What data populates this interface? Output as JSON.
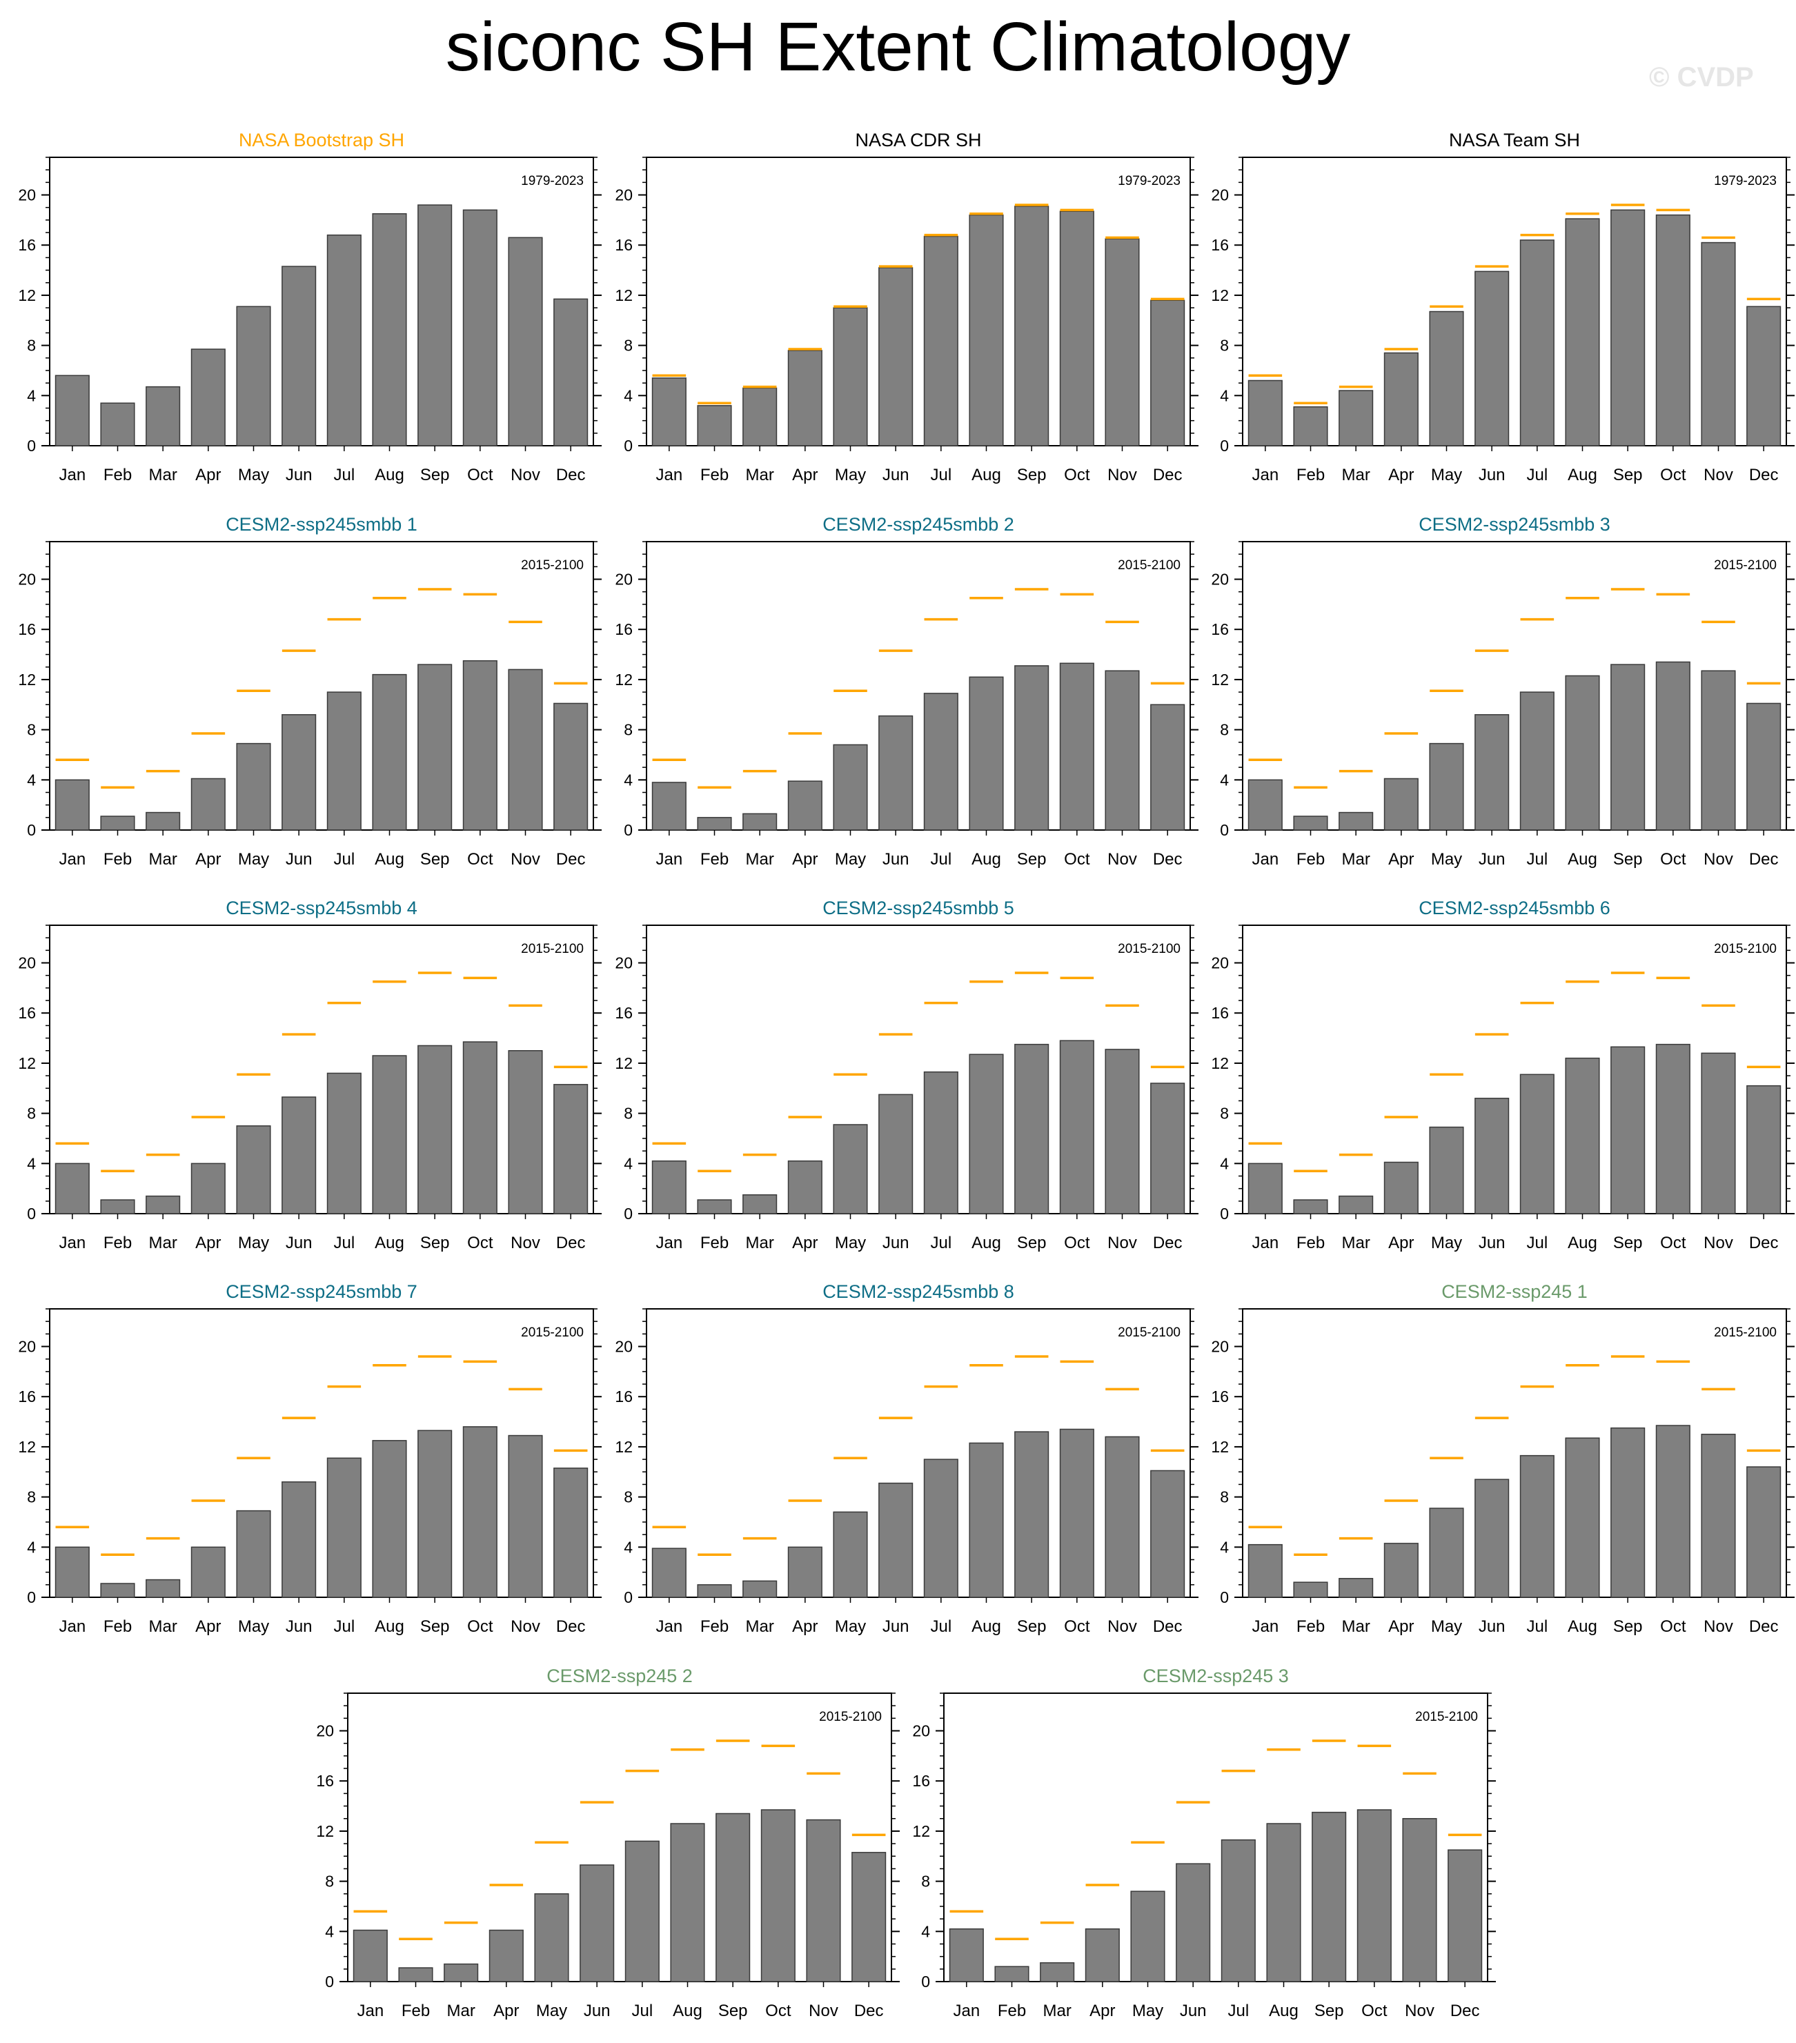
{
  "title": "siconc SH Extent Climatology",
  "watermark": "© CVDP",
  "colors": {
    "bar": "#808080",
    "bar_edge": "#3a3a3a",
    "reference": "#ffa500",
    "title_obs": "#ffa500",
    "title_black": "#000000",
    "title_smbb": "#0e6e86",
    "title_ssp245": "#6a9a6a"
  },
  "chart_data": [
    {
      "type": "bar",
      "title": "NASA Bootstrap SH",
      "title_color": "title_obs",
      "period": "1979-2023",
      "categories": [
        "Jan",
        "Feb",
        "Mar",
        "Apr",
        "May",
        "Jun",
        "Jul",
        "Aug",
        "Sep",
        "Oct",
        "Nov",
        "Dec"
      ],
      "values": [
        5.6,
        3.4,
        4.7,
        7.7,
        11.1,
        14.3,
        16.8,
        18.5,
        19.2,
        18.8,
        16.6,
        11.7
      ],
      "ylim": [
        0,
        23
      ],
      "yticks": [
        0,
        4,
        8,
        12,
        16,
        20
      ],
      "show_reference": false
    },
    {
      "type": "bar",
      "title": "NASA CDR SH",
      "title_color": "title_black",
      "period": "1979-2023",
      "categories": [
        "Jan",
        "Feb",
        "Mar",
        "Apr",
        "May",
        "Jun",
        "Jul",
        "Aug",
        "Sep",
        "Oct",
        "Nov",
        "Dec"
      ],
      "values": [
        5.4,
        3.2,
        4.6,
        7.6,
        11.0,
        14.2,
        16.7,
        18.4,
        19.1,
        18.7,
        16.5,
        11.6
      ],
      "ylim": [
        0,
        23
      ],
      "yticks": [
        0,
        4,
        8,
        12,
        16,
        20
      ],
      "show_reference": true
    },
    {
      "type": "bar",
      "title": "NASA Team SH",
      "title_color": "title_black",
      "period": "1979-2023",
      "categories": [
        "Jan",
        "Feb",
        "Mar",
        "Apr",
        "May",
        "Jun",
        "Jul",
        "Aug",
        "Sep",
        "Oct",
        "Nov",
        "Dec"
      ],
      "values": [
        5.2,
        3.1,
        4.4,
        7.4,
        10.7,
        13.9,
        16.4,
        18.1,
        18.8,
        18.4,
        16.2,
        11.1
      ],
      "ylim": [
        0,
        23
      ],
      "yticks": [
        0,
        4,
        8,
        12,
        16,
        20
      ],
      "show_reference": true
    },
    {
      "type": "bar",
      "title": "CESM2-ssp245smbb 1",
      "title_color": "title_smbb",
      "period": "2015-2100",
      "categories": [
        "Jan",
        "Feb",
        "Mar",
        "Apr",
        "May",
        "Jun",
        "Jul",
        "Aug",
        "Sep",
        "Oct",
        "Nov",
        "Dec"
      ],
      "values": [
        4.0,
        1.1,
        1.4,
        4.1,
        6.9,
        9.2,
        11.0,
        12.4,
        13.2,
        13.5,
        12.8,
        10.1
      ],
      "ylim": [
        0,
        23
      ],
      "yticks": [
        0,
        4,
        8,
        12,
        16,
        20
      ],
      "show_reference": true
    },
    {
      "type": "bar",
      "title": "CESM2-ssp245smbb 2",
      "title_color": "title_smbb",
      "period": "2015-2100",
      "categories": [
        "Jan",
        "Feb",
        "Mar",
        "Apr",
        "May",
        "Jun",
        "Jul",
        "Aug",
        "Sep",
        "Oct",
        "Nov",
        "Dec"
      ],
      "values": [
        3.8,
        1.0,
        1.3,
        3.9,
        6.8,
        9.1,
        10.9,
        12.2,
        13.1,
        13.3,
        12.7,
        10.0
      ],
      "ylim": [
        0,
        23
      ],
      "yticks": [
        0,
        4,
        8,
        12,
        16,
        20
      ],
      "show_reference": true
    },
    {
      "type": "bar",
      "title": "CESM2-ssp245smbb 3",
      "title_color": "title_smbb",
      "period": "2015-2100",
      "categories": [
        "Jan",
        "Feb",
        "Mar",
        "Apr",
        "May",
        "Jun",
        "Jul",
        "Aug",
        "Sep",
        "Oct",
        "Nov",
        "Dec"
      ],
      "values": [
        4.0,
        1.1,
        1.4,
        4.1,
        6.9,
        9.2,
        11.0,
        12.3,
        13.2,
        13.4,
        12.7,
        10.1
      ],
      "ylim": [
        0,
        23
      ],
      "yticks": [
        0,
        4,
        8,
        12,
        16,
        20
      ],
      "show_reference": true
    },
    {
      "type": "bar",
      "title": "CESM2-ssp245smbb 4",
      "title_color": "title_smbb",
      "period": "2015-2100",
      "categories": [
        "Jan",
        "Feb",
        "Mar",
        "Apr",
        "May",
        "Jun",
        "Jul",
        "Aug",
        "Sep",
        "Oct",
        "Nov",
        "Dec"
      ],
      "values": [
        4.0,
        1.1,
        1.4,
        4.0,
        7.0,
        9.3,
        11.2,
        12.6,
        13.4,
        13.7,
        13.0,
        10.3
      ],
      "ylim": [
        0,
        23
      ],
      "yticks": [
        0,
        4,
        8,
        12,
        16,
        20
      ],
      "show_reference": true
    },
    {
      "type": "bar",
      "title": "CESM2-ssp245smbb 5",
      "title_color": "title_smbb",
      "period": "2015-2100",
      "categories": [
        "Jan",
        "Feb",
        "Mar",
        "Apr",
        "May",
        "Jun",
        "Jul",
        "Aug",
        "Sep",
        "Oct",
        "Nov",
        "Dec"
      ],
      "values": [
        4.2,
        1.1,
        1.5,
        4.2,
        7.1,
        9.5,
        11.3,
        12.7,
        13.5,
        13.8,
        13.1,
        10.4
      ],
      "ylim": [
        0,
        23
      ],
      "yticks": [
        0,
        4,
        8,
        12,
        16,
        20
      ],
      "show_reference": true
    },
    {
      "type": "bar",
      "title": "CESM2-ssp245smbb 6",
      "title_color": "title_smbb",
      "period": "2015-2100",
      "categories": [
        "Jan",
        "Feb",
        "Mar",
        "Apr",
        "May",
        "Jun",
        "Jul",
        "Aug",
        "Sep",
        "Oct",
        "Nov",
        "Dec"
      ],
      "values": [
        4.0,
        1.1,
        1.4,
        4.1,
        6.9,
        9.2,
        11.1,
        12.4,
        13.3,
        13.5,
        12.8,
        10.2
      ],
      "ylim": [
        0,
        23
      ],
      "yticks": [
        0,
        4,
        8,
        12,
        16,
        20
      ],
      "show_reference": true
    },
    {
      "type": "bar",
      "title": "CESM2-ssp245smbb 7",
      "title_color": "title_smbb",
      "period": "2015-2100",
      "categories": [
        "Jan",
        "Feb",
        "Mar",
        "Apr",
        "May",
        "Jun",
        "Jul",
        "Aug",
        "Sep",
        "Oct",
        "Nov",
        "Dec"
      ],
      "values": [
        4.0,
        1.1,
        1.4,
        4.0,
        6.9,
        9.2,
        11.1,
        12.5,
        13.3,
        13.6,
        12.9,
        10.3
      ],
      "ylim": [
        0,
        23
      ],
      "yticks": [
        0,
        4,
        8,
        12,
        16,
        20
      ],
      "show_reference": true
    },
    {
      "type": "bar",
      "title": "CESM2-ssp245smbb 8",
      "title_color": "title_smbb",
      "period": "2015-2100",
      "categories": [
        "Jan",
        "Feb",
        "Mar",
        "Apr",
        "May",
        "Jun",
        "Jul",
        "Aug",
        "Sep",
        "Oct",
        "Nov",
        "Dec"
      ],
      "values": [
        3.9,
        1.0,
        1.3,
        4.0,
        6.8,
        9.1,
        11.0,
        12.3,
        13.2,
        13.4,
        12.8,
        10.1
      ],
      "ylim": [
        0,
        23
      ],
      "yticks": [
        0,
        4,
        8,
        12,
        16,
        20
      ],
      "show_reference": true
    },
    {
      "type": "bar",
      "title": "CESM2-ssp245 1",
      "title_color": "title_ssp245",
      "period": "2015-2100",
      "categories": [
        "Jan",
        "Feb",
        "Mar",
        "Apr",
        "May",
        "Jun",
        "Jul",
        "Aug",
        "Sep",
        "Oct",
        "Nov",
        "Dec"
      ],
      "values": [
        4.2,
        1.2,
        1.5,
        4.3,
        7.1,
        9.4,
        11.3,
        12.7,
        13.5,
        13.7,
        13.0,
        10.4
      ],
      "ylim": [
        0,
        23
      ],
      "yticks": [
        0,
        4,
        8,
        12,
        16,
        20
      ],
      "show_reference": true
    },
    {
      "type": "bar",
      "title": "CESM2-ssp245 2",
      "title_color": "title_ssp245",
      "period": "2015-2100",
      "categories": [
        "Jan",
        "Feb",
        "Mar",
        "Apr",
        "May",
        "Jun",
        "Jul",
        "Aug",
        "Sep",
        "Oct",
        "Nov",
        "Dec"
      ],
      "values": [
        4.1,
        1.1,
        1.4,
        4.1,
        7.0,
        9.3,
        11.2,
        12.6,
        13.4,
        13.7,
        12.9,
        10.3
      ],
      "ylim": [
        0,
        23
      ],
      "yticks": [
        0,
        4,
        8,
        12,
        16,
        20
      ],
      "show_reference": true
    },
    {
      "type": "bar",
      "title": "CESM2-ssp245 3",
      "title_color": "title_ssp245",
      "period": "2015-2100",
      "categories": [
        "Jan",
        "Feb",
        "Mar",
        "Apr",
        "May",
        "Jun",
        "Jul",
        "Aug",
        "Sep",
        "Oct",
        "Nov",
        "Dec"
      ],
      "values": [
        4.2,
        1.2,
        1.5,
        4.2,
        7.2,
        9.4,
        11.3,
        12.6,
        13.5,
        13.7,
        13.0,
        10.5
      ],
      "ylim": [
        0,
        23
      ],
      "yticks": [
        0,
        4,
        8,
        12,
        16,
        20
      ],
      "show_reference": true
    }
  ]
}
